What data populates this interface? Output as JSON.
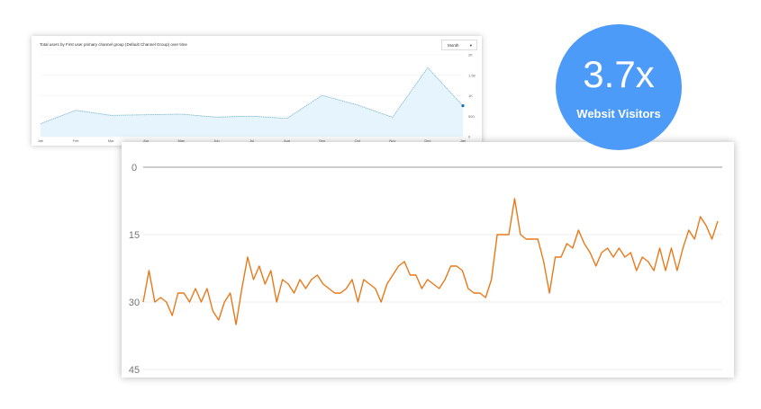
{
  "badge": {
    "value": "3.7x",
    "label": "Websit Visitors",
    "color": "#4d9bf8"
  },
  "chart_data": [
    {
      "type": "area",
      "title": "Total users by First user primary channel group (Default Channel Group) over time",
      "period_select": "Month",
      "categories": [
        "Jan",
        "Feb",
        "Mar",
        "Apr",
        "May",
        "Jun",
        "Jul",
        "Aug",
        "Sep",
        "Oct",
        "Nov",
        "Dec",
        "Jan"
      ],
      "values": [
        315,
        645,
        520,
        535,
        550,
        475,
        500,
        445,
        1010,
        775,
        475,
        1685,
        755
      ],
      "yticks": [
        "2K",
        "1.5K",
        "1K",
        "500",
        "0"
      ],
      "ylim": [
        0,
        2000
      ],
      "color": "#7fb8cc",
      "fill": "#e6f4fd",
      "grid": true
    },
    {
      "type": "line",
      "yticks": [
        "0",
        "15",
        "30",
        "45"
      ],
      "ylim": [
        0,
        45
      ],
      "y_inverted": true,
      "color": "#e8791a",
      "grid": true,
      "values": [
        30,
        23,
        30,
        29,
        30,
        33,
        28,
        28,
        30,
        27,
        30,
        27,
        32,
        34,
        30,
        28,
        35,
        27,
        20,
        25,
        22,
        26,
        23,
        30,
        25,
        26,
        28,
        25,
        27,
        25,
        24,
        26,
        27,
        28,
        28,
        27,
        25,
        30,
        25,
        26,
        27,
        30,
        26,
        24,
        22,
        21,
        24,
        24,
        27,
        25,
        26,
        27,
        25,
        22,
        22,
        23,
        27,
        28,
        28,
        29,
        25,
        15,
        15,
        15,
        7,
        15,
        16,
        16,
        16,
        21,
        28,
        20,
        20,
        17,
        18,
        14,
        17,
        19,
        22,
        19,
        18,
        20,
        18,
        20,
        19,
        23,
        20,
        21,
        23,
        18,
        23,
        18,
        23,
        18,
        14,
        16,
        11,
        13,
        16,
        12
      ]
    }
  ]
}
